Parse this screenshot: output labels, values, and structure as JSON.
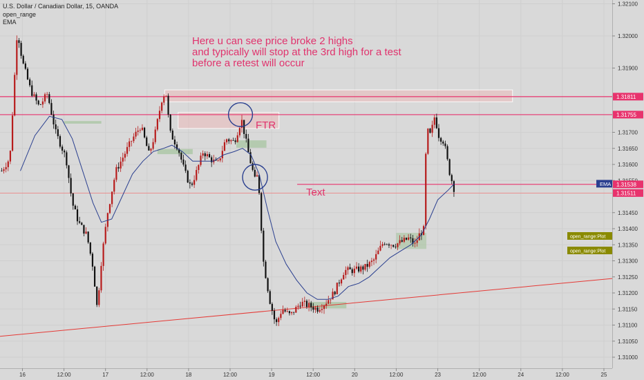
{
  "header": {
    "symbol_line": "U.S. Dollar / Canadian Dollar, 15, OANDA",
    "indicator_1": "open_range",
    "indicator_2": "EMA"
  },
  "chart_data": {
    "type": "candlestick",
    "ylim": [
      1.3097,
      1.321
    ],
    "y_ticks": [
      "1.32100",
      "1.32000",
      "1.31900",
      "1.31811",
      "1.31755",
      "1.31700",
      "1.31650",
      "1.31600",
      "1.31550",
      "1.31538",
      "1.31511",
      "1.31450",
      "1.31400",
      "1.31350",
      "1.31300",
      "1.31250",
      "1.31200",
      "1.31150",
      "1.31100",
      "1.31050",
      "1.31000"
    ],
    "y_tick_values": [
      1.321,
      1.32,
      1.319,
      1.31811,
      1.31755,
      1.317,
      1.3165,
      1.316,
      1.3155,
      1.31538,
      1.31511,
      1.3145,
      1.314,
      1.3135,
      1.313,
      1.3125,
      1.312,
      1.3115,
      1.311,
      1.3105,
      1.31
    ],
    "x_ticks": [
      "16",
      "12:00",
      "17",
      "12:00",
      "18",
      "12:00",
      "19",
      "12:00",
      "20",
      "12:00",
      "23",
      "12:00",
      "24",
      "12:00",
      "25"
    ],
    "x_tick_times": [
      1,
      3,
      5,
      7,
      9,
      11,
      13,
      15,
      17,
      19,
      21,
      23,
      25,
      27,
      29
    ],
    "x_range": [
      -0.08,
      29.4
    ],
    "horizontal_lines": [
      {
        "value": 1.31811,
        "color": "#e8336d",
        "label": "1.31811"
      },
      {
        "value": 1.31755,
        "color": "#e8336d",
        "label": "1.31755"
      },
      {
        "value": 1.31538,
        "color": "#e8336d",
        "label": "1.31538",
        "x_start": 14.23
      },
      {
        "value": 1.31511,
        "color": "#f07878",
        "label": "1.31511",
        "thin": true
      }
    ],
    "ema_label": "EMA",
    "open_range_labels": [
      "open_range:Plot",
      "open_range:Plot"
    ],
    "annotations": {
      "note_lines": [
        "Here u can see price broke 2 highs",
        "and typically will stop at the 3rd high for a test",
        "before a retest will occur"
      ],
      "ftr": "FTR",
      "text": "Text"
    },
    "colors": {
      "up": "#b71c1c",
      "down": "#111111",
      "ema": "#2a3f8f",
      "trendline": "#e53935",
      "annotation_pink": "#e0336d",
      "axis_label_pink": "#e8336d",
      "ema_badge": "#2a3f8f",
      "olive_badge": "#8a8a00"
    },
    "trendline": {
      "from": [
        -0.08,
        1.31065
      ],
      "to": [
        29.4,
        1.31245
      ]
    },
    "zones": [
      {
        "x0": 7.85,
        "x1": 24.6,
        "y0": 1.31795,
        "y1": 1.31832,
        "fill": "rgba(240,180,180,0.45)",
        "stroke": "rgba(255,255,255,0.9)"
      },
      {
        "x0": 8.5,
        "x1": 13.35,
        "y0": 1.31712,
        "y1": 1.31762,
        "fill": "rgba(240,180,180,0.45)",
        "stroke": "rgba(255,255,255,0.9)"
      },
      {
        "x0": 11.3,
        "x1": 12.75,
        "y0": 1.31652,
        "y1": 1.31675,
        "fill": "rgba(150,190,140,0.55)",
        "stroke": "none"
      },
      {
        "x0": 7.5,
        "x1": 9.2,
        "y0": 1.31632,
        "y1": 1.31648,
        "fill": "rgba(150,190,140,0.55)",
        "stroke": "none"
      },
      {
        "x0": 3.0,
        "x1": 4.8,
        "y0": 1.31727,
        "y1": 1.31735,
        "fill": "rgba(150,190,140,0.55)",
        "stroke": "none"
      },
      {
        "x0": 19.0,
        "x1": 20.45,
        "y0": 1.31337,
        "y1": 1.31387,
        "fill": "rgba(150,190,140,0.45)",
        "stroke": "none"
      },
      {
        "x0": 14.8,
        "x1": 16.6,
        "y0": 1.31152,
        "y1": 1.31172,
        "fill": "rgba(150,190,140,0.55)",
        "stroke": "none"
      }
    ],
    "circles": [
      {
        "cx": 11.5,
        "cy": 1.31755,
        "rx": 0.58,
        "ry": 0.00037
      },
      {
        "cx": 12.2,
        "cy": 1.3156,
        "rx": 0.6,
        "ry": 0.0004
      }
    ],
    "keypoints": [
      [
        0,
        1.3158
      ],
      [
        0.4,
        1.3162
      ],
      [
        0.75,
        1.3202
      ],
      [
        1.0,
        1.3192
      ],
      [
        1.4,
        1.3183
      ],
      [
        1.8,
        1.3178
      ],
      [
        2.2,
        1.3182
      ],
      [
        2.6,
        1.317
      ],
      [
        3.1,
        1.3162
      ],
      [
        3.4,
        1.3148
      ],
      [
        3.7,
        1.3142
      ],
      [
        4.1,
        1.3138
      ],
      [
        4.4,
        1.3128
      ],
      [
        4.6,
        1.3115
      ],
      [
        4.8,
        1.313
      ],
      [
        5.1,
        1.3145
      ],
      [
        5.5,
        1.3158
      ],
      [
        5.9,
        1.3163
      ],
      [
        6.3,
        1.3168
      ],
      [
        6.7,
        1.3172
      ],
      [
        7.1,
        1.3163
      ],
      [
        7.4,
        1.317
      ],
      [
        7.7,
        1.318
      ],
      [
        7.9,
        1.3183
      ],
      [
        8.1,
        1.317
      ],
      [
        8.5,
        1.3165
      ],
      [
        8.8,
        1.3158
      ],
      [
        9.1,
        1.3153
      ],
      [
        9.4,
        1.3158
      ],
      [
        9.7,
        1.3164
      ],
      [
        10.0,
        1.3162
      ],
      [
        10.4,
        1.316
      ],
      [
        10.8,
        1.3168
      ],
      [
        11.2,
        1.3167
      ],
      [
        11.55,
        1.3174
      ],
      [
        11.9,
        1.3163
      ],
      [
        12.2,
        1.3155
      ],
      [
        12.35,
        1.3157
      ],
      [
        12.6,
        1.313
      ],
      [
        12.9,
        1.3118
      ],
      [
        13.2,
        1.311
      ],
      [
        13.5,
        1.3115
      ],
      [
        13.9,
        1.3113
      ],
      [
        14.4,
        1.3117
      ],
      [
        14.8,
        1.3116
      ],
      [
        15.2,
        1.3115
      ],
      [
        15.6,
        1.3117
      ],
      [
        16.0,
        1.312
      ],
      [
        16.5,
        1.3127
      ],
      [
        17.0,
        1.3127
      ],
      [
        17.5,
        1.3128
      ],
      [
        17.9,
        1.313
      ],
      [
        18.4,
        1.3136
      ],
      [
        18.9,
        1.3135
      ],
      [
        19.3,
        1.3136
      ],
      [
        19.6,
        1.3137
      ],
      [
        19.9,
        1.3135
      ],
      [
        20.1,
        1.3138
      ],
      [
        20.35,
        1.314
      ],
      [
        20.45,
        1.3171
      ],
      [
        20.65,
        1.3169
      ],
      [
        20.85,
        1.3175
      ],
      [
        21.05,
        1.3169
      ],
      [
        21.3,
        1.3167
      ],
      [
        21.55,
        1.3158
      ],
      [
        21.8,
        1.3152
      ]
    ],
    "ema_points": [
      [
        0.9,
        1.3158
      ],
      [
        1.6,
        1.3169
      ],
      [
        2.3,
        1.3175
      ],
      [
        2.9,
        1.3174
      ],
      [
        3.4,
        1.3168
      ],
      [
        3.9,
        1.3158
      ],
      [
        4.4,
        1.3148
      ],
      [
        4.8,
        1.3142
      ],
      [
        5.3,
        1.3143
      ],
      [
        5.8,
        1.315
      ],
      [
        6.3,
        1.3157
      ],
      [
        6.8,
        1.3161
      ],
      [
        7.3,
        1.3164
      ],
      [
        7.8,
        1.3165
      ],
      [
        8.2,
        1.3166
      ],
      [
        8.7,
        1.3164
      ],
      [
        9.2,
        1.3161
      ],
      [
        9.7,
        1.3161
      ],
      [
        10.2,
        1.3161
      ],
      [
        10.7,
        1.3163
      ],
      [
        11.2,
        1.3164
      ],
      [
        11.6,
        1.3165
      ],
      [
        12.0,
        1.3163
      ],
      [
        12.4,
        1.3157
      ],
      [
        12.8,
        1.3146
      ],
      [
        13.2,
        1.3136
      ],
      [
        13.7,
        1.3129
      ],
      [
        14.2,
        1.3124
      ],
      [
        14.7,
        1.312
      ],
      [
        15.2,
        1.3118
      ],
      [
        15.7,
        1.3118
      ],
      [
        16.2,
        1.3119
      ],
      [
        16.7,
        1.3122
      ],
      [
        17.2,
        1.3123
      ],
      [
        17.7,
        1.3125
      ],
      [
        18.2,
        1.3128
      ],
      [
        18.7,
        1.3131
      ],
      [
        19.2,
        1.3133
      ],
      [
        19.7,
        1.3135
      ],
      [
        20.2,
        1.3138
      ],
      [
        20.6,
        1.3143
      ],
      [
        21.0,
        1.3149
      ],
      [
        21.5,
        1.3152
      ],
      [
        21.8,
        1.3154
      ]
    ]
  }
}
